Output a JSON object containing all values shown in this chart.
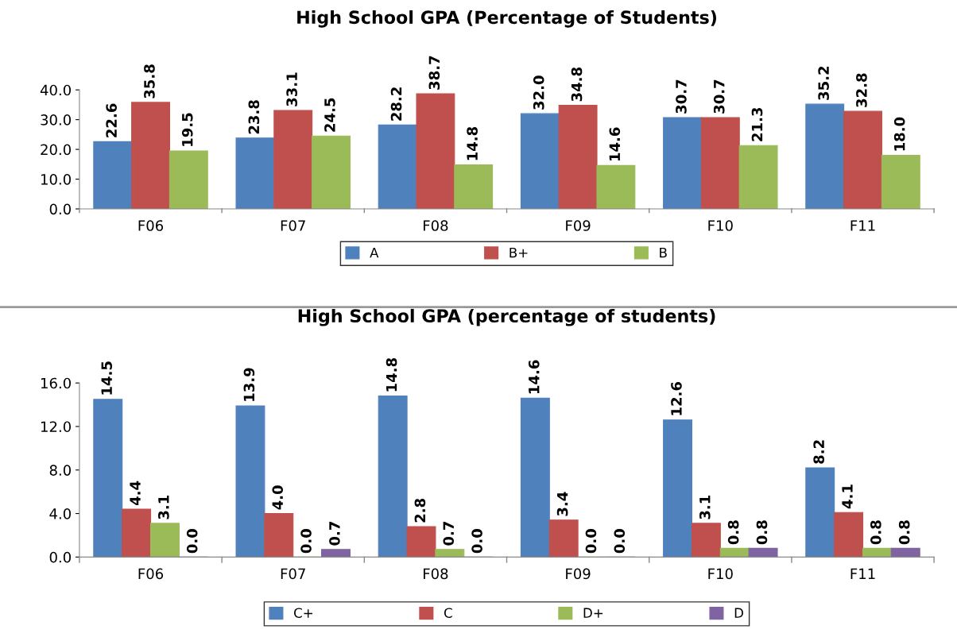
{
  "chart_data": [
    {
      "type": "bar",
      "title": "High School GPA (Percentage of Students)",
      "categories": [
        "F06",
        "F07",
        "F08",
        "F09",
        "F10",
        "F11"
      ],
      "ylim": [
        0,
        40
      ],
      "yticks": [
        {
          "value": 0,
          "label": "0.0"
        },
        {
          "value": 10,
          "label": "10.0"
        },
        {
          "value": 20,
          "label": "20.0"
        },
        {
          "value": 30,
          "label": "30.0"
        },
        {
          "value": 40,
          "label": "40.0"
        }
      ],
      "grid": false,
      "legend": "bottom",
      "series": [
        {
          "name": "A",
          "color": "#4f81bd",
          "values": [
            22.6,
            23.8,
            28.2,
            32.0,
            30.7,
            35.2
          ],
          "value_labels": [
            "22.6",
            "23.8",
            "28.2",
            "32.0",
            "30.7",
            "35.2"
          ]
        },
        {
          "name": "B+",
          "color": "#c0504d",
          "values": [
            35.8,
            33.1,
            38.7,
            34.8,
            30.7,
            32.8
          ],
          "value_labels": [
            "35.8",
            "33.1",
            "38.7",
            "34.8",
            "30.7",
            "32.8"
          ]
        },
        {
          "name": "B",
          "color": "#9bbb59",
          "values": [
            19.5,
            24.5,
            14.8,
            14.6,
            21.3,
            18.0
          ],
          "value_labels": [
            "19.5",
            "24.5",
            "14.8",
            "14.6",
            "21.3",
            "18.0"
          ]
        }
      ]
    },
    {
      "type": "bar",
      "title": "High School GPA (percentage of students)",
      "categories": [
        "F06",
        "F07",
        "F08",
        "F09",
        "F10",
        "F11"
      ],
      "ylim": [
        0,
        16
      ],
      "yticks": [
        {
          "value": 0,
          "label": "0.0"
        },
        {
          "value": 4,
          "label": "4.0"
        },
        {
          "value": 8,
          "label": "8.0"
        },
        {
          "value": 12,
          "label": "12.0"
        },
        {
          "value": 16,
          "label": "16.0"
        }
      ],
      "grid": false,
      "legend": "bottom",
      "series": [
        {
          "name": "C+",
          "color": "#4f81bd",
          "values": [
            14.5,
            13.9,
            14.8,
            14.6,
            12.6,
            8.2
          ],
          "value_labels": [
            "14.5",
            "13.9",
            "14.8",
            "14.6",
            "12.6",
            "8.2"
          ]
        },
        {
          "name": "C",
          "color": "#c0504d",
          "values": [
            4.4,
            4.0,
            2.8,
            3.4,
            3.1,
            4.1
          ],
          "value_labels": [
            "4.4",
            "4.0",
            "2.8",
            "3.4",
            "3.1",
            "4.1"
          ]
        },
        {
          "name": "D+",
          "color": "#9bbb59",
          "values": [
            3.1,
            0.0,
            0.7,
            0.0,
            0.8,
            0.8
          ],
          "value_labels": [
            "3.1",
            "0.0",
            "0.7",
            "0.0",
            "0.8",
            "0.8"
          ]
        },
        {
          "name": "D",
          "color": "#8064a2",
          "values": [
            0.0,
            0.7,
            0.0,
            0.0,
            0.8,
            0.8
          ],
          "value_labels": [
            "0.0",
            "0.7",
            "0.0",
            "0.0",
            "0.8",
            "0.8"
          ]
        }
      ]
    }
  ]
}
